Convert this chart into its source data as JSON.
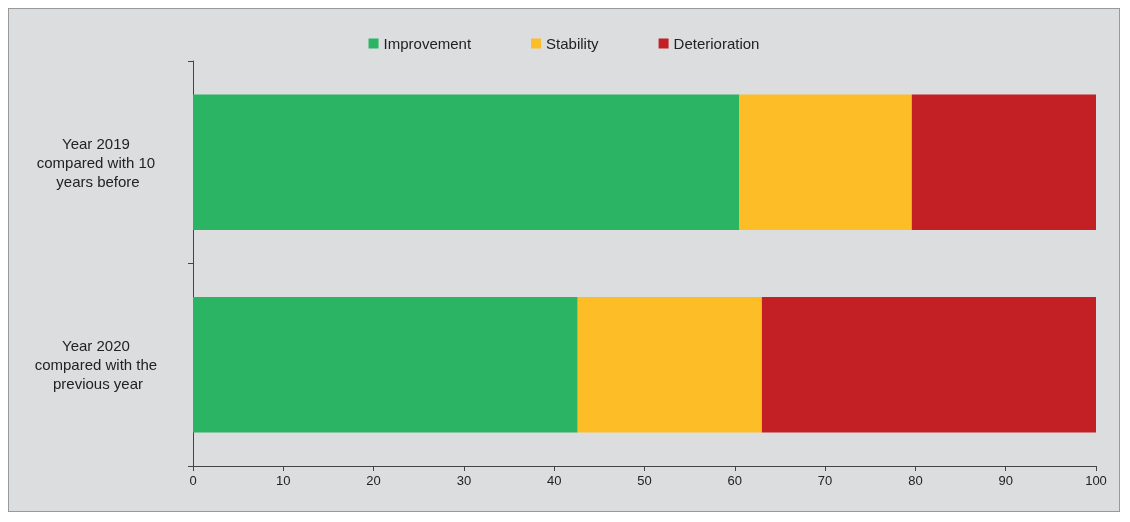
{
  "chart_data": {
    "type": "bar",
    "orientation": "horizontal",
    "stacked": true,
    "categories": [
      "Year 2019 compared with 10 years before",
      "Year 2020 compared with the previous year"
    ],
    "series": [
      {
        "name": "Improvement",
        "color": "#2bb463",
        "values": [
          60.5,
          42.6
        ]
      },
      {
        "name": "Stability",
        "color": "#fdbd27",
        "values": [
          19.1,
          20.4
        ]
      },
      {
        "name": "Deterioration",
        "color": "#c32026",
        "values": [
          20.4,
          37.0
        ]
      }
    ],
    "xlim": [
      0,
      100
    ],
    "xticks": [
      0,
      10,
      20,
      30,
      40,
      50,
      60,
      70,
      80,
      90,
      100
    ],
    "legend": "top"
  }
}
